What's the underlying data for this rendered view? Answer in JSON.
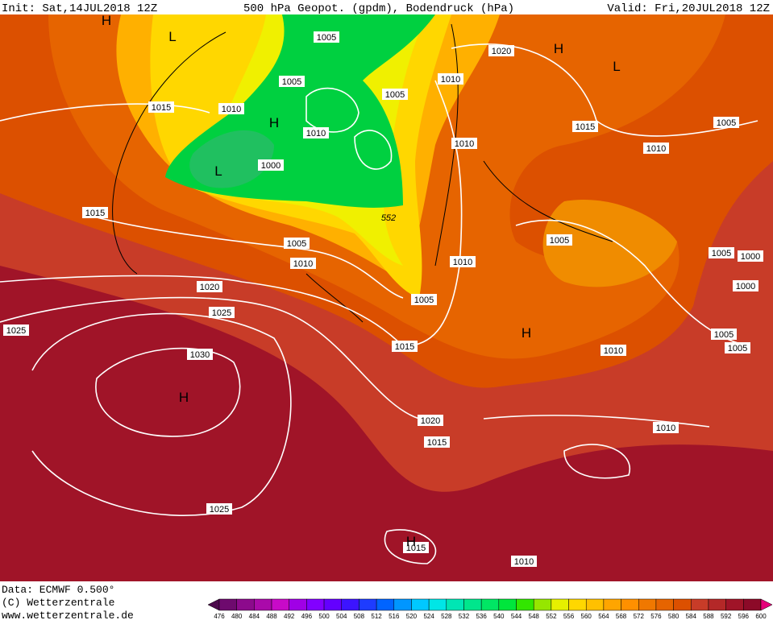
{
  "header": {
    "init": "Init: Sat,14JUL2018 12Z",
    "title": "500 hPa Geopot. (gpdm), Bodendruck (hPa)",
    "valid": "Valid: Fri,20JUL2018 12Z"
  },
  "footer": {
    "data": "Data: ECMWF  0.500°",
    "copyright": "(C) Wetterzentrale",
    "url": "www.wetterzentrale.de"
  },
  "legend": {
    "values": [
      476,
      480,
      484,
      488,
      492,
      496,
      500,
      504,
      508,
      512,
      516,
      520,
      524,
      528,
      532,
      536,
      540,
      544,
      548,
      552,
      556,
      560,
      564,
      568,
      572,
      576,
      580,
      584,
      588,
      592,
      596,
      600
    ],
    "colors": [
      "#4c0a4c",
      "#6e0a6e",
      "#8c0a8c",
      "#aa0aaa",
      "#c80ac8",
      "#a000e6",
      "#8200ff",
      "#6400ff",
      "#3c14ff",
      "#1e3cff",
      "#0064ff",
      "#0096ff",
      "#00c8ff",
      "#00e6e6",
      "#00e6b4",
      "#00e68c",
      "#00e664",
      "#00e63c",
      "#32e600",
      "#96e600",
      "#e6f000",
      "#ffd700",
      "#ffc000",
      "#ffa500",
      "#ff9000",
      "#f07800",
      "#e66400",
      "#dc5000",
      "#c83c28",
      "#b42828",
      "#a01428",
      "#8c0a28",
      "#e6007a"
    ]
  },
  "map": {
    "pressure_labels": [
      "1005",
      "1005",
      "1015",
      "1010",
      "1010",
      "1000",
      "1005",
      "1010",
      "1020",
      "1015",
      "1010",
      "1005",
      "1010",
      "1015",
      "1005",
      "1010",
      "1010",
      "1005",
      "1005",
      "1000",
      "1000",
      "1020",
      "1025",
      "1025",
      "1005",
      "1015",
      "1030",
      "1005",
      "1005",
      "1010",
      "1020",
      "1015",
      "1010",
      "1025",
      "1015",
      "1010"
    ],
    "centers": [
      "H",
      "L",
      "H",
      "L",
      "H",
      "L",
      "H",
      "H",
      "H"
    ],
    "contour_label": "552"
  }
}
